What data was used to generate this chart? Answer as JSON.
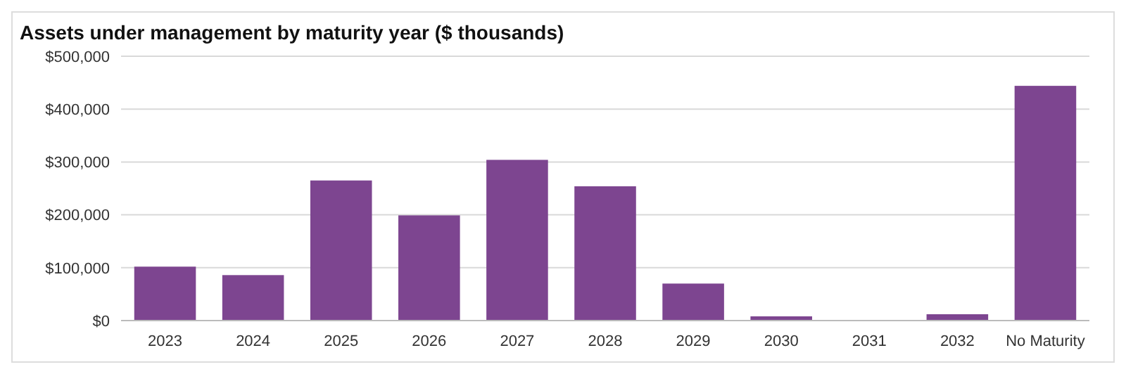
{
  "chart_data": {
    "type": "bar",
    "title": "Assets under management by maturity year ($ thousands)",
    "categories": [
      "2023",
      "2024",
      "2025",
      "2026",
      "2027",
      "2028",
      "2029",
      "2030",
      "2031",
      "2032",
      "No Maturity"
    ],
    "values": [
      102000,
      86000,
      265000,
      199000,
      304000,
      254000,
      70000,
      8000,
      0,
      12000,
      444000
    ],
    "color": "#7d4590",
    "ylim": [
      0,
      500000
    ],
    "yticks": [
      {
        "value": 0,
        "label": "$0"
      },
      {
        "value": 100000,
        "label": "$100,000"
      },
      {
        "value": 200000,
        "label": "$200,000"
      },
      {
        "value": 300000,
        "label": "$300,000"
      },
      {
        "value": 400000,
        "label": "$400,000"
      },
      {
        "value": 500000,
        "label": "$500,000"
      }
    ],
    "grid": "y"
  }
}
